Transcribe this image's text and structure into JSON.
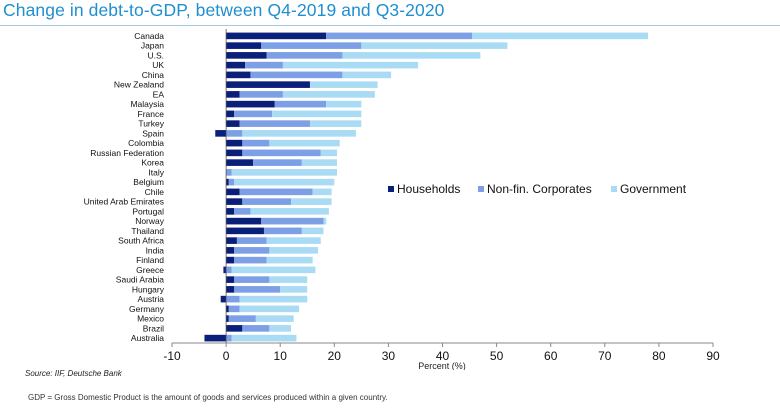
{
  "title": "Change in debt-to-GDP, between Q4-2019 and Q3-2020",
  "source": "Source: IIF, Deutsche Bank",
  "footnote": "GDP = Gross Domestic Product is the amount of goods and services produced within a given country.",
  "colors": {
    "households": "#0a1f7a",
    "corporates": "#7c9fe6",
    "government": "#a9dcf4",
    "title": "#1f8fd0"
  },
  "chart_data": {
    "type": "bar",
    "orientation": "horizontal",
    "stacked": true,
    "xlabel": "Percent (%)",
    "ylabel": "",
    "xlim": [
      -10,
      90
    ],
    "xticks": [
      -10,
      0,
      10,
      20,
      30,
      40,
      50,
      60,
      70,
      80,
      90
    ],
    "grid": false,
    "legend_position": "right",
    "categories": [
      "Canada",
      "Japan",
      "U.S.",
      "UK",
      "China",
      "New Zealand",
      "EA",
      "Malaysia",
      "France",
      "Turkey",
      "Spain",
      "Colombia",
      "Russian Federation",
      "Korea",
      "Italy",
      "Belgium",
      "Chile",
      "United Arab Emirates",
      "Portugal",
      "Norway",
      "Thailand",
      "South Africa",
      "India",
      "Finland",
      "Greece",
      "Saudi Arabia",
      "Hungary",
      "Austria",
      "Germany",
      "Mexico",
      "Brazil",
      "Australia"
    ],
    "series": [
      {
        "name": "Households",
        "values": [
          18.5,
          6.5,
          7.5,
          3.5,
          4.5,
          15.5,
          2.5,
          9,
          1.5,
          2.5,
          -2,
          3,
          3,
          5,
          0,
          0.5,
          2.5,
          3,
          1.5,
          6.5,
          7,
          2,
          1.5,
          1.5,
          -0.5,
          1.5,
          1.5,
          -1,
          0.5,
          0.5,
          3,
          -4
        ]
      },
      {
        "name": "Non-fin. Corporates",
        "values": [
          27,
          18.5,
          14,
          7,
          17,
          0,
          8,
          9.5,
          7,
          13,
          3,
          5,
          14.5,
          9,
          1,
          1,
          13.5,
          9,
          3,
          11.5,
          7,
          5.5,
          6.5,
          6,
          1,
          6.5,
          8.5,
          2.5,
          2,
          5,
          5,
          1
        ]
      },
      {
        "name": "Government",
        "values": [
          32.5,
          27,
          25.5,
          25,
          9,
          12.5,
          17,
          6.5,
          16.5,
          9.5,
          21,
          13,
          3,
          6.5,
          19.5,
          18.5,
          3.5,
          7.5,
          14.5,
          0.5,
          4,
          10,
          9,
          8.5,
          15.5,
          7,
          5,
          12.5,
          11,
          7,
          4,
          12
        ]
      }
    ]
  }
}
